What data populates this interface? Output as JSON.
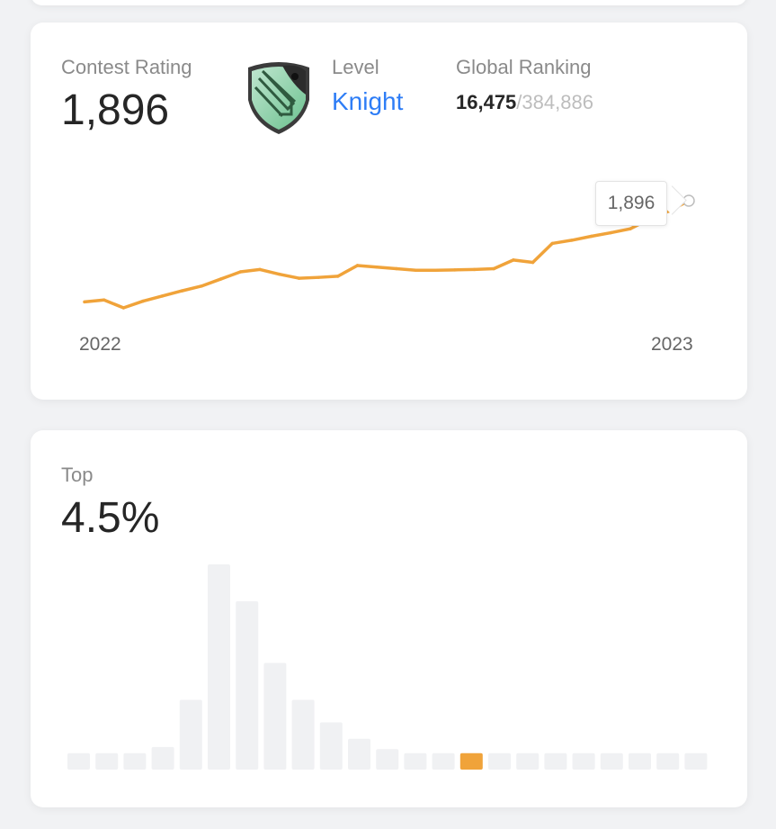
{
  "contest_rating": {
    "label": "Contest Rating",
    "value": "1,896",
    "level_label": "Level",
    "level_value": "Knight",
    "badge_icon": "knight-badge-icon",
    "ranking_label": "Global Ranking",
    "ranking_current": "16,475",
    "ranking_separator": "/",
    "ranking_total": "384,886",
    "tooltip": "1,896"
  },
  "top_percentage": {
    "label": "Top",
    "value": "4.5%"
  },
  "colors": {
    "accent": "#f0a33a",
    "link": "#2e7df6",
    "bar": "#f0f1f3"
  },
  "chart_data": [
    {
      "type": "line",
      "title": "",
      "x_tick_labels": [
        "2022",
        "2023"
      ],
      "series": [
        {
          "values": [
            1640,
            1645,
            1625,
            1642,
            1655,
            1668,
            1680,
            1698,
            1716,
            1722,
            1710,
            1700,
            1702,
            1705,
            1732,
            1728,
            1724,
            1720,
            1720,
            1721,
            1722,
            1724,
            1746,
            1740,
            1788,
            1796,
            1806,
            1815,
            1825,
            1850,
            1870,
            1896
          ]
        }
      ],
      "highlight_point": {
        "index": 31,
        "label": "1,896"
      }
    },
    {
      "type": "bar",
      "title": "",
      "values": [
        8,
        8,
        8,
        11,
        34,
        100,
        82,
        52,
        34,
        23,
        15,
        10,
        8,
        8,
        8,
        8,
        8,
        8,
        8,
        8,
        8,
        8,
        8
      ],
      "highlight_index": 14
    }
  ]
}
